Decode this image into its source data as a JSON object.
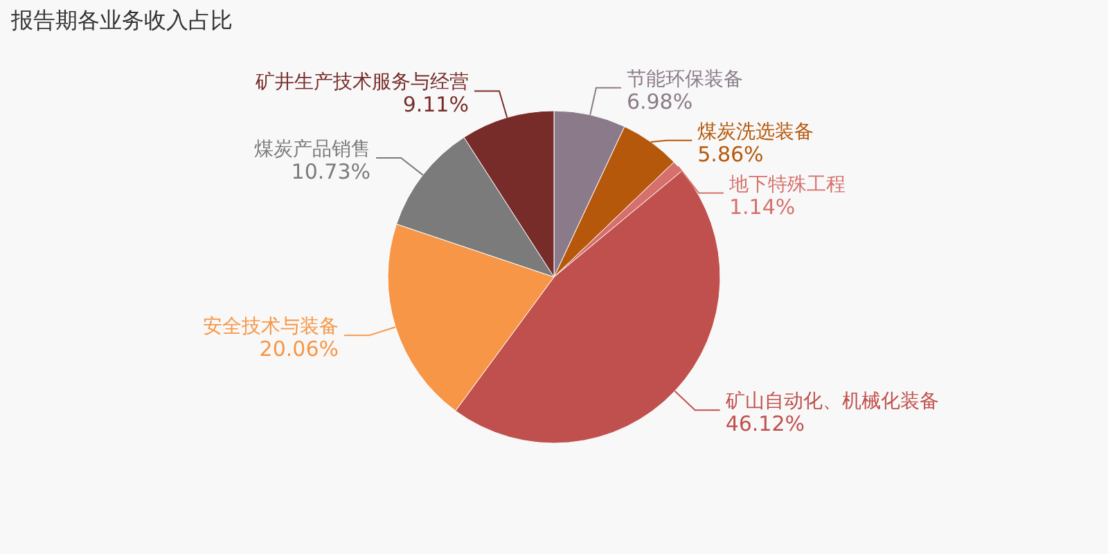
{
  "chart_data": {
    "type": "pie",
    "title": "报告期各业务收入占比",
    "categories": [
      "节能环保装备",
      "煤炭洗选装备",
      "地下特殊工程",
      "矿山自动化、机械化装备",
      "安全技术与装备",
      "煤炭产品销售",
      "矿井生产技术服务与经营"
    ],
    "values": [
      6.98,
      5.86,
      1.14,
      46.12,
      20.06,
      10.73,
      9.11
    ],
    "value_labels": [
      "6.98%",
      "5.86%",
      "1.14%",
      "46.12%",
      "20.06%",
      "10.73%",
      "9.11%"
    ],
    "colors": [
      "#8b7a89",
      "#b5580b",
      "#d6706c",
      "#c0504d",
      "#f79646",
      "#7b7b7b",
      "#772c2a"
    ]
  }
}
